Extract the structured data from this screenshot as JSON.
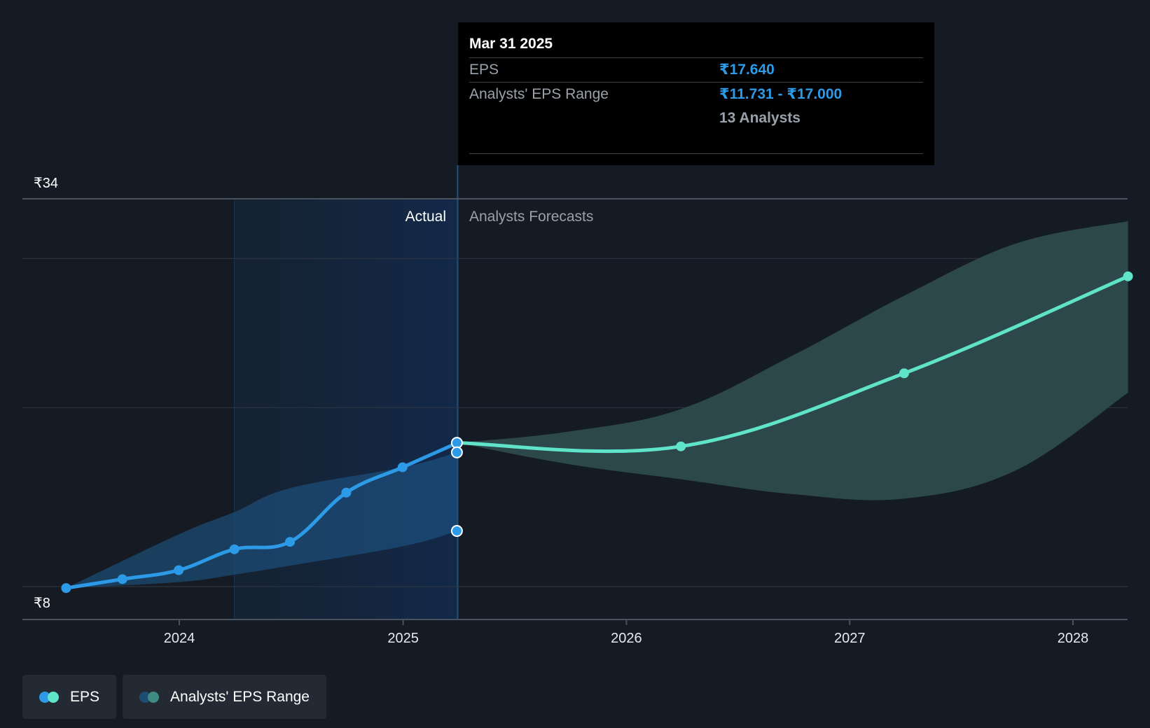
{
  "chart_data": {
    "type": "line",
    "y_axis": {
      "top_label": "₹34",
      "bottom_label": "₹8",
      "min": 8,
      "max": 34
    },
    "x_axis": {
      "ticks": [
        "2024",
        "2025",
        "2026",
        "2027",
        "2028"
      ]
    },
    "regions": {
      "actual_label": "Actual",
      "forecast_label": "Analysts Forecasts"
    },
    "series": [
      {
        "name": "EPS",
        "color": "#2d9ae8",
        "points": [
          {
            "x": "2023-06-30",
            "y": 7.9
          },
          {
            "x": "2023-09-30",
            "y": 8.5
          },
          {
            "x": "2023-12-31",
            "y": 9.1
          },
          {
            "x": "2024-03-31",
            "y": 10.5
          },
          {
            "x": "2024-06-30",
            "y": 11.0
          },
          {
            "x": "2024-09-30",
            "y": 14.3
          },
          {
            "x": "2024-12-31",
            "y": 16.0
          },
          {
            "x": "2025-03-31",
            "y": 17.64
          }
        ]
      },
      {
        "name": "EPS",
        "color": "#5fe3c9",
        "forecast": true,
        "points": [
          {
            "x": "2025-03-31",
            "y": 17.64
          },
          {
            "x": "2026-03-31",
            "y": 17.4
          },
          {
            "x": "2027-03-31",
            "y": 22.3
          },
          {
            "x": "2028-03-31",
            "y": 28.8
          }
        ]
      }
    ],
    "range": {
      "name": "Analysts' EPS Range",
      "actual": [
        {
          "x": "2023-06-30",
          "low": 7.9,
          "high": 7.9
        },
        {
          "x": "2023-12-31",
          "low": 8.3,
          "high": 11.5
        },
        {
          "x": "2024-03-31",
          "low": 8.8,
          "high": 13.0
        },
        {
          "x": "2024-06-30",
          "low": 9.4,
          "high": 14.6
        },
        {
          "x": "2024-12-31",
          "low": 10.7,
          "high": 16.0
        },
        {
          "x": "2025-03-31",
          "low": 11.731,
          "high": 17.0
        }
      ],
      "forecast": [
        {
          "x": "2025-03-31",
          "low": 17.64,
          "high": 17.64
        },
        {
          "x": "2025-09-30",
          "low": 16.2,
          "high": 18.4
        },
        {
          "x": "2026-03-31",
          "low": 15.2,
          "high": 19.9
        },
        {
          "x": "2026-09-30",
          "low": 14.2,
          "high": 23.5
        },
        {
          "x": "2027-03-31",
          "low": 13.9,
          "high": 27.5
        },
        {
          "x": "2027-09-30",
          "low": 15.8,
          "high": 31.0
        },
        {
          "x": "2028-03-31",
          "low": 21.0,
          "high": 32.5
        }
      ],
      "tooltip_markers": [
        17.64,
        17.0,
        11.731
      ]
    },
    "grid": true,
    "legend_position": "bottom-left"
  },
  "tooltip": {
    "date": "Mar 31 2025",
    "eps_label": "EPS",
    "eps_value": "₹17.640",
    "range_label": "Analysts' EPS Range",
    "range_value": "₹11.731 - ₹17.000",
    "analysts": "13 Analysts"
  },
  "legend": {
    "eps_label": "EPS",
    "range_label": "Analysts' EPS Range"
  },
  "colors": {
    "background": "#151b24",
    "actual_line": "#2d9ae8",
    "forecast_line": "#5fe3c9",
    "forecast_range": "#2e4b4d",
    "grid": "#303844"
  }
}
